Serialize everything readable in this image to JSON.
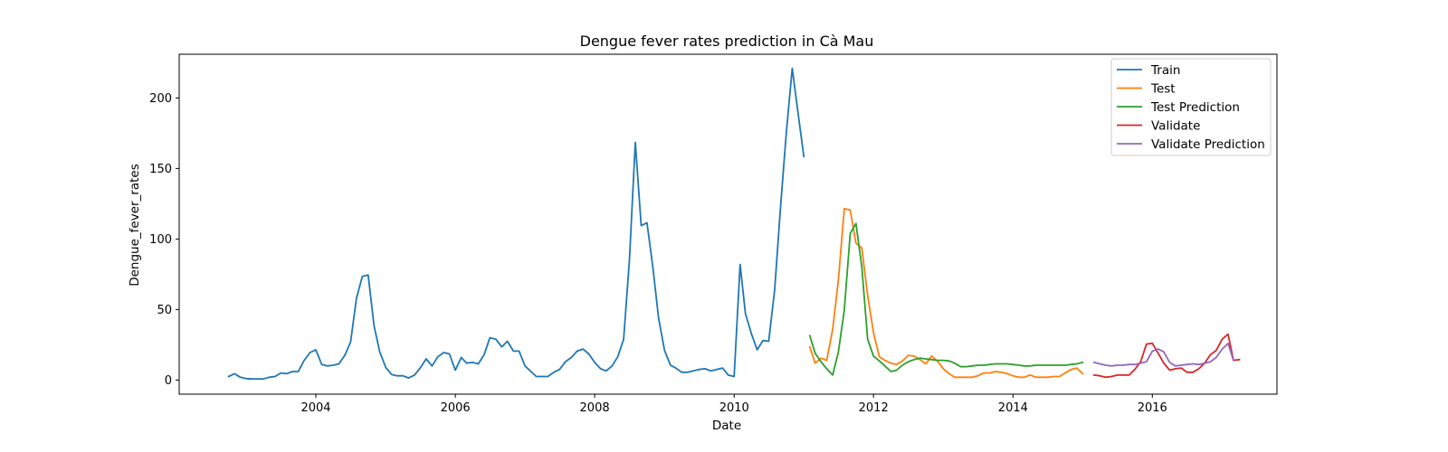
{
  "chart_data": {
    "type": "line",
    "title": "Dengue fever rates prediction in Cà Mau",
    "xlabel": "Date",
    "ylabel": "Dengue_fever_rates",
    "xlim": [
      "2002-01-15",
      "2017-10-15"
    ],
    "ylim": [
      -10,
      231
    ],
    "x_ticks": [
      "2004-01-01",
      "2006-01-01",
      "2008-01-01",
      "2010-01-01",
      "2012-01-01",
      "2014-01-01",
      "2016-01-01"
    ],
    "x_tick_labels": [
      "2004",
      "2006",
      "2008",
      "2010",
      "2012",
      "2014",
      "2016"
    ],
    "y_ticks": [
      0,
      50,
      100,
      150,
      200
    ],
    "y_tick_labels": [
      "0",
      "50",
      "100",
      "150",
      "200"
    ],
    "grid": false,
    "legend_position": "top-right",
    "series": [
      {
        "name": "Train",
        "color": "#1f77b4",
        "points": [
          [
            "2002-10-01",
            2.5
          ],
          [
            "2002-11-01",
            4.5
          ],
          [
            "2002-12-01",
            2
          ],
          [
            "2003-01-01",
            1
          ],
          [
            "2003-02-01",
            0.8
          ],
          [
            "2003-03-01",
            0.8
          ],
          [
            "2003-04-01",
            0.8
          ],
          [
            "2003-05-01",
            2
          ],
          [
            "2003-06-01",
            2.5
          ],
          [
            "2003-07-01",
            5
          ],
          [
            "2003-08-01",
            4.5
          ],
          [
            "2003-09-01",
            6
          ],
          [
            "2003-10-01",
            6
          ],
          [
            "2003-11-01",
            14
          ],
          [
            "2003-12-01",
            19.5
          ],
          [
            "2004-01-01",
            21.5
          ],
          [
            "2004-02-01",
            11
          ],
          [
            "2004-03-01",
            10
          ],
          [
            "2004-04-01",
            10.5
          ],
          [
            "2004-05-01",
            11.5
          ],
          [
            "2004-06-01",
            17.5
          ],
          [
            "2004-07-01",
            27
          ],
          [
            "2004-08-01",
            58
          ],
          [
            "2004-09-01",
            73.5
          ],
          [
            "2004-10-01",
            74.5
          ],
          [
            "2004-11-01",
            38.5
          ],
          [
            "2004-12-01",
            20
          ],
          [
            "2005-01-01",
            9
          ],
          [
            "2005-02-01",
            4
          ],
          [
            "2005-03-01",
            3
          ],
          [
            "2005-04-01",
            3
          ],
          [
            "2005-05-01",
            1.5
          ],
          [
            "2005-06-01",
            3.5
          ],
          [
            "2005-07-01",
            8.5
          ],
          [
            "2005-08-01",
            15
          ],
          [
            "2005-09-01",
            10
          ],
          [
            "2005-10-01",
            16.5
          ],
          [
            "2005-11-01",
            19.5
          ],
          [
            "2005-12-01",
            18.5
          ],
          [
            "2006-01-01",
            7
          ],
          [
            "2006-02-01",
            16
          ],
          [
            "2006-03-01",
            12
          ],
          [
            "2006-04-01",
            12.5
          ],
          [
            "2006-05-01",
            11.5
          ],
          [
            "2006-06-01",
            18
          ],
          [
            "2006-07-01",
            30
          ],
          [
            "2006-08-01",
            29
          ],
          [
            "2006-09-01",
            23.5
          ],
          [
            "2006-10-01",
            27.5
          ],
          [
            "2006-11-01",
            20.5
          ],
          [
            "2006-12-01",
            20.5
          ],
          [
            "2007-01-01",
            10
          ],
          [
            "2007-02-01",
            6
          ],
          [
            "2007-03-01",
            2.5
          ],
          [
            "2007-04-01",
            2.5
          ],
          [
            "2007-05-01",
            2.5
          ],
          [
            "2007-06-01",
            5.5
          ],
          [
            "2007-07-01",
            7.5
          ],
          [
            "2007-08-01",
            13
          ],
          [
            "2007-09-01",
            16
          ],
          [
            "2007-10-01",
            20.5
          ],
          [
            "2007-11-01",
            22
          ],
          [
            "2007-12-01",
            18.5
          ],
          [
            "2008-01-01",
            12.5
          ],
          [
            "2008-02-01",
            8
          ],
          [
            "2008-03-01",
            6.5
          ],
          [
            "2008-04-01",
            10
          ],
          [
            "2008-05-01",
            16.5
          ],
          [
            "2008-06-01",
            29
          ],
          [
            "2008-07-01",
            85
          ],
          [
            "2008-08-01",
            168.5
          ],
          [
            "2008-09-01",
            109.5
          ],
          [
            "2008-10-01",
            111.5
          ],
          [
            "2008-11-01",
            80
          ],
          [
            "2008-12-01",
            44
          ],
          [
            "2009-01-01",
            21
          ],
          [
            "2009-02-01",
            10.5
          ],
          [
            "2009-03-01",
            8.5
          ],
          [
            "2009-04-01",
            5.5
          ],
          [
            "2009-05-01",
            5.5
          ],
          [
            "2009-06-01",
            6.5
          ],
          [
            "2009-07-01",
            7.5
          ],
          [
            "2009-08-01",
            8
          ],
          [
            "2009-09-01",
            6.5
          ],
          [
            "2009-10-01",
            7.5
          ],
          [
            "2009-11-01",
            8.5
          ],
          [
            "2009-12-01",
            3.5
          ],
          [
            "2010-01-01",
            2.5
          ],
          [
            "2010-02-01",
            82
          ],
          [
            "2010-03-01",
            47
          ],
          [
            "2010-04-01",
            33
          ],
          [
            "2010-05-01",
            21.5
          ],
          [
            "2010-06-01",
            28
          ],
          [
            "2010-07-01",
            27.5
          ],
          [
            "2010-08-01",
            64
          ],
          [
            "2010-09-01",
            123
          ],
          [
            "2010-10-01",
            175
          ],
          [
            "2010-11-01",
            221
          ],
          [
            "2010-12-01",
            190
          ],
          [
            "2011-01-01",
            158.5
          ]
        ]
      },
      {
        "name": "Test",
        "color": "#ff7f0e",
        "points": [
          [
            "2011-02-01",
            23.5
          ],
          [
            "2011-03-01",
            12
          ],
          [
            "2011-04-01",
            15.5
          ],
          [
            "2011-05-01",
            14
          ],
          [
            "2011-06-01",
            36
          ],
          [
            "2011-07-01",
            71
          ],
          [
            "2011-08-01",
            121.5
          ],
          [
            "2011-09-01",
            120.5
          ],
          [
            "2011-10-01",
            97
          ],
          [
            "2011-11-01",
            93.5
          ],
          [
            "2011-12-01",
            60
          ],
          [
            "2012-01-01",
            33.5
          ],
          [
            "2012-02-01",
            16.5
          ],
          [
            "2012-03-01",
            14
          ],
          [
            "2012-04-01",
            12
          ],
          [
            "2012-05-01",
            11
          ],
          [
            "2012-06-01",
            13.5
          ],
          [
            "2012-07-01",
            17.5
          ],
          [
            "2012-08-01",
            17
          ],
          [
            "2012-09-01",
            14.5
          ],
          [
            "2012-10-01",
            11.5
          ],
          [
            "2012-11-01",
            17
          ],
          [
            "2012-12-01",
            13.5
          ],
          [
            "2013-01-01",
            8
          ],
          [
            "2013-02-01",
            4.5
          ],
          [
            "2013-03-01",
            2
          ],
          [
            "2013-04-01",
            2
          ],
          [
            "2013-05-01",
            2
          ],
          [
            "2013-06-01",
            2
          ],
          [
            "2013-07-01",
            3
          ],
          [
            "2013-08-01",
            5
          ],
          [
            "2013-09-01",
            5
          ],
          [
            "2013-10-01",
            6
          ],
          [
            "2013-11-01",
            5.5
          ],
          [
            "2013-12-01",
            4.5
          ],
          [
            "2014-01-01",
            3
          ],
          [
            "2014-02-01",
            2
          ],
          [
            "2014-03-01",
            2
          ],
          [
            "2014-04-01",
            3.5
          ],
          [
            "2014-05-01",
            2
          ],
          [
            "2014-06-01",
            2
          ],
          [
            "2014-07-01",
            2
          ],
          [
            "2014-08-01",
            2.5
          ],
          [
            "2014-09-01",
            2.5
          ],
          [
            "2014-10-01",
            5
          ],
          [
            "2014-11-01",
            7.5
          ],
          [
            "2014-12-01",
            8.5
          ],
          [
            "2015-01-01",
            4.5
          ]
        ]
      },
      {
        "name": "Test Prediction",
        "color": "#2ca02c",
        "points": [
          [
            "2011-02-01",
            31.5
          ],
          [
            "2011-03-01",
            19
          ],
          [
            "2011-04-01",
            13
          ],
          [
            "2011-05-01",
            8
          ],
          [
            "2011-06-01",
            3.5
          ],
          [
            "2011-07-01",
            20
          ],
          [
            "2011-08-01",
            49.5
          ],
          [
            "2011-09-01",
            104
          ],
          [
            "2011-10-01",
            111
          ],
          [
            "2011-11-01",
            80
          ],
          [
            "2011-12-01",
            29
          ],
          [
            "2012-01-01",
            17
          ],
          [
            "2012-02-01",
            13.5
          ],
          [
            "2012-03-01",
            10
          ],
          [
            "2012-04-01",
            6
          ],
          [
            "2012-05-01",
            7
          ],
          [
            "2012-06-01",
            10.5
          ],
          [
            "2012-07-01",
            13
          ],
          [
            "2012-08-01",
            14.5
          ],
          [
            "2012-09-01",
            15.5
          ],
          [
            "2012-10-01",
            15
          ],
          [
            "2012-11-01",
            14.5
          ],
          [
            "2012-12-01",
            14
          ],
          [
            "2013-01-01",
            14
          ],
          [
            "2013-02-01",
            13.5
          ],
          [
            "2013-03-01",
            12
          ],
          [
            "2013-04-01",
            9.5
          ],
          [
            "2013-05-01",
            9.5
          ],
          [
            "2013-06-01",
            10
          ],
          [
            "2013-07-01",
            10.5
          ],
          [
            "2013-08-01",
            10.5
          ],
          [
            "2013-09-01",
            11
          ],
          [
            "2013-10-01",
            11.5
          ],
          [
            "2013-11-01",
            11.5
          ],
          [
            "2013-12-01",
            11.5
          ],
          [
            "2014-01-01",
            11
          ],
          [
            "2014-02-01",
            10.5
          ],
          [
            "2014-03-01",
            10
          ],
          [
            "2014-04-01",
            10
          ],
          [
            "2014-05-01",
            10.5
          ],
          [
            "2014-06-01",
            10.5
          ],
          [
            "2014-07-01",
            10.5
          ],
          [
            "2014-08-01",
            10.5
          ],
          [
            "2014-09-01",
            10.5
          ],
          [
            "2014-10-01",
            10.5
          ],
          [
            "2014-11-01",
            11
          ],
          [
            "2014-12-01",
            11.5
          ],
          [
            "2015-01-01",
            12.5
          ]
        ]
      },
      {
        "name": "Validate",
        "color": "#d62728",
        "points": [
          [
            "2015-03-01",
            3.5
          ],
          [
            "2015-04-01",
            3
          ],
          [
            "2015-05-01",
            2
          ],
          [
            "2015-06-01",
            2.5
          ],
          [
            "2015-07-01",
            3.5
          ],
          [
            "2015-08-01",
            3.5
          ],
          [
            "2015-09-01",
            3.5
          ],
          [
            "2015-10-01",
            7.5
          ],
          [
            "2015-11-01",
            13
          ],
          [
            "2015-12-01",
            25.5
          ],
          [
            "2016-01-01",
            26
          ],
          [
            "2016-02-01",
            19
          ],
          [
            "2016-03-01",
            12
          ],
          [
            "2016-04-01",
            7
          ],
          [
            "2016-05-01",
            8
          ],
          [
            "2016-06-01",
            8.5
          ],
          [
            "2016-07-01",
            5.5
          ],
          [
            "2016-08-01",
            5.5
          ],
          [
            "2016-09-01",
            8
          ],
          [
            "2016-10-01",
            12
          ],
          [
            "2016-11-01",
            18
          ],
          [
            "2016-12-01",
            21
          ],
          [
            "2017-01-01",
            29
          ],
          [
            "2017-02-01",
            32.5
          ],
          [
            "2017-03-01",
            14
          ],
          [
            "2017-04-01",
            14.5
          ]
        ]
      },
      {
        "name": "Validate Prediction",
        "color": "#9467bd",
        "points": [
          [
            "2015-03-01",
            12.5
          ],
          [
            "2015-04-01",
            11.5
          ],
          [
            "2015-05-01",
            10.5
          ],
          [
            "2015-06-01",
            10
          ],
          [
            "2015-07-01",
            10.5
          ],
          [
            "2015-08-01",
            10.5
          ],
          [
            "2015-09-01",
            11
          ],
          [
            "2015-10-01",
            11
          ],
          [
            "2015-11-01",
            12
          ],
          [
            "2015-12-01",
            13
          ],
          [
            "2016-01-01",
            20.5
          ],
          [
            "2016-02-01",
            22
          ],
          [
            "2016-03-01",
            20
          ],
          [
            "2016-04-01",
            12.5
          ],
          [
            "2016-05-01",
            10
          ],
          [
            "2016-06-01",
            10.5
          ],
          [
            "2016-07-01",
            11
          ],
          [
            "2016-08-01",
            11.5
          ],
          [
            "2016-09-01",
            11
          ],
          [
            "2016-10-01",
            12
          ],
          [
            "2016-11-01",
            13
          ],
          [
            "2016-12-01",
            16
          ],
          [
            "2017-01-01",
            22
          ],
          [
            "2017-02-01",
            26
          ],
          [
            "2017-03-01",
            14
          ]
        ]
      }
    ]
  }
}
